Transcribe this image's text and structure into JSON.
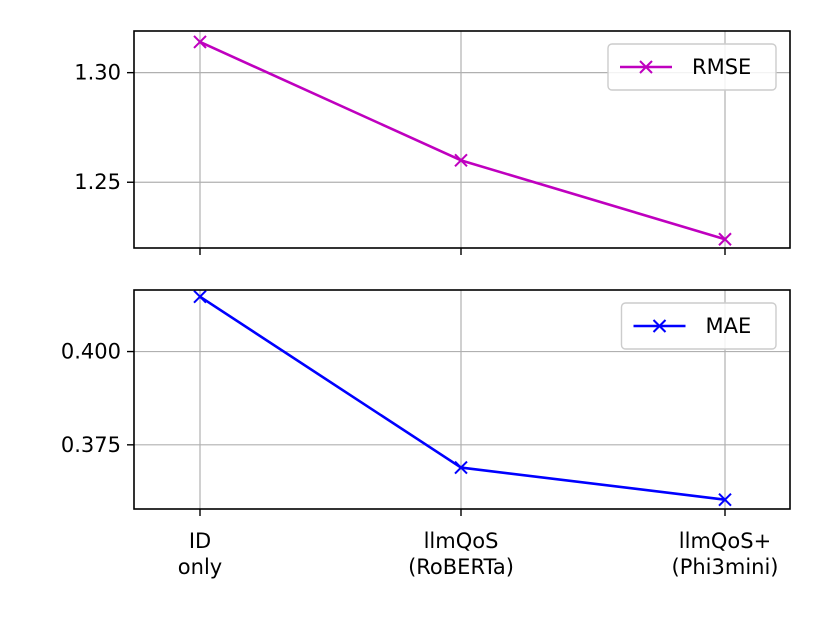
{
  "chart_data": [
    {
      "type": "line",
      "categories": [
        "ID\nonly",
        "llmQoS\n(RoBERTa)",
        "llmQoS+\n(Phi3mini)"
      ],
      "series": [
        {
          "name": "RMSE",
          "values": [
            1.314,
            1.26,
            1.224
          ],
          "color": "#bf00bf",
          "marker": "x"
        }
      ],
      "ylim": [
        1.22,
        1.319
      ],
      "yticks": [
        1.25,
        1.3
      ],
      "ytick_labels": [
        "1.25",
        "1.30"
      ],
      "grid": true,
      "legend_position": "upper-right",
      "xticklabels_shown": false
    },
    {
      "type": "line",
      "categories": [
        "ID\nonly",
        "llmQoS\n(RoBERTa)",
        "llmQoS+\n(Phi3mini)"
      ],
      "series": [
        {
          "name": "MAE",
          "values": [
            0.4147,
            0.3689,
            0.3603
          ],
          "color": "#0000ff",
          "marker": "x"
        }
      ],
      "ylim": [
        0.3578,
        0.4165
      ],
      "yticks": [
        0.375,
        0.4
      ],
      "ytick_labels": [
        "0.375",
        "0.400"
      ],
      "grid": true,
      "legend_position": "upper-right",
      "xticklabels_shown": true
    }
  ]
}
